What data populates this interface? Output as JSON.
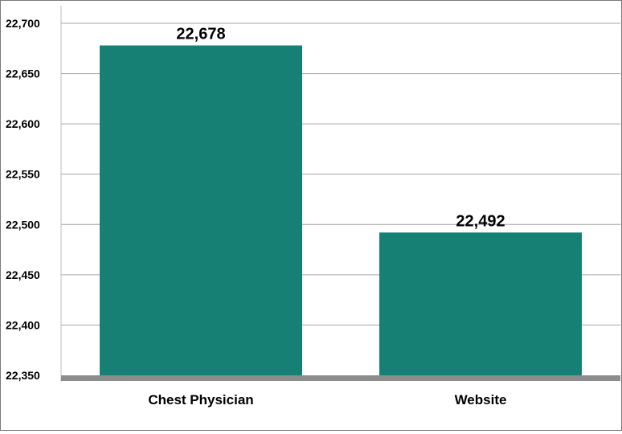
{
  "chart_data": {
    "type": "bar",
    "title": "",
    "xlabel": "",
    "ylabel": "",
    "categories": [
      "Chest Physician",
      "Website"
    ],
    "values": [
      22678,
      22492
    ],
    "value_labels": [
      "22,678",
      "22,492"
    ],
    "ylim": [
      22350,
      22700
    ],
    "yticks": [
      22350,
      22400,
      22450,
      22500,
      22550,
      22600,
      22650,
      22700
    ],
    "ytick_labels": [
      "22,350",
      "22,400",
      "22,450",
      "22,500",
      "22,550",
      "22,600",
      "22,650",
      "22,700"
    ],
    "grid": true,
    "legend": "none",
    "colors": {
      "bar": "#168074",
      "grid": "#a6a6a6",
      "baseline": "#8c8c8c",
      "text": "#000000"
    }
  }
}
